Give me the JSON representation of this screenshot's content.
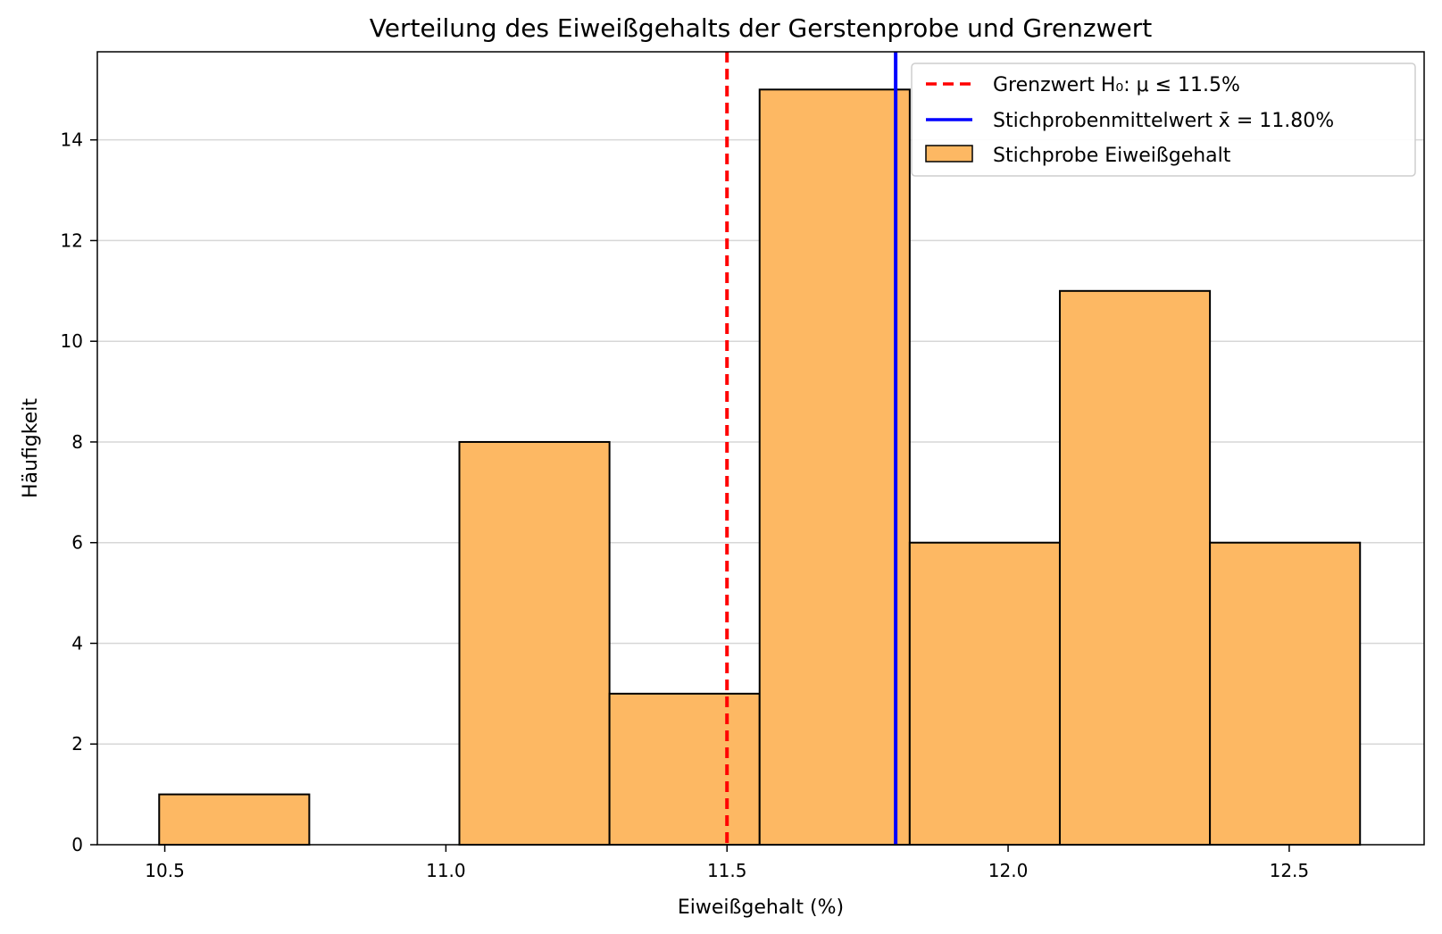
{
  "chart_data": {
    "type": "bar",
    "title": "Verteilung des Eiweißgehalts der Gerstenprobe und Grenzwert",
    "xlabel": "Eiweißgehalt (%)",
    "ylabel": "Häufigkeit",
    "xlim": [
      10.38,
      12.74
    ],
    "ylim": [
      0,
      15.75
    ],
    "xticks": [
      "10.5",
      "11.0",
      "11.5",
      "12.0",
      "12.5"
    ],
    "xtick_values": [
      10.5,
      11.0,
      11.5,
      12.0,
      12.5
    ],
    "yticks": [
      "0",
      "2",
      "4",
      "6",
      "8",
      "10",
      "12",
      "14"
    ],
    "ytick_values": [
      0,
      2,
      4,
      6,
      8,
      10,
      12,
      14
    ],
    "grid": "horizontal",
    "bins": [
      {
        "x0": 10.49,
        "x1": 10.757,
        "value": 1
      },
      {
        "x0": 10.757,
        "x1": 11.024,
        "value": 0
      },
      {
        "x0": 11.024,
        "x1": 11.291,
        "value": 8
      },
      {
        "x0": 11.291,
        "x1": 11.558,
        "value": 3
      },
      {
        "x0": 11.558,
        "x1": 11.825,
        "value": 15
      },
      {
        "x0": 11.825,
        "x1": 12.092,
        "value": 6
      },
      {
        "x0": 12.092,
        "x1": 12.359,
        "value": 11
      },
      {
        "x0": 12.359,
        "x1": 12.626,
        "value": 6
      }
    ],
    "vlines": [
      {
        "name": "Grenzwert H₀: μ ≤ 11.5%",
        "x": 11.5,
        "color": "#ff0000",
        "style": "dashed"
      },
      {
        "name": "Stichprobenmittelwert x̄ = 11.80%",
        "x": 11.8,
        "color": "#0000ff",
        "style": "solid"
      }
    ],
    "series": [
      {
        "name": "Stichprobe Eiweißgehalt",
        "color": "#fdb863",
        "edgecolor": "#000000"
      }
    ],
    "legend_position": "top-right"
  }
}
